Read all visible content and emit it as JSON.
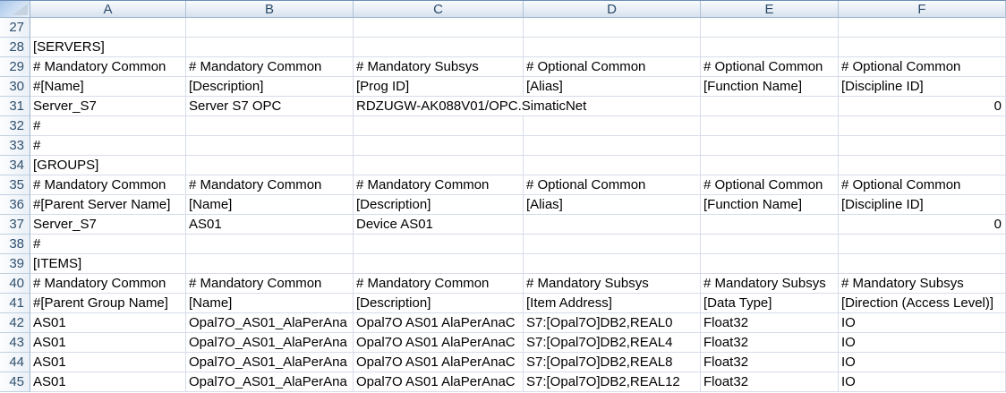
{
  "sheet": {
    "column_headers": [
      "A",
      "B",
      "C",
      "D",
      "E",
      "F"
    ],
    "rows": [
      {
        "num": "27",
        "cells": [
          "",
          "",
          "",
          "",
          "",
          ""
        ]
      },
      {
        "num": "28",
        "cells": [
          "[SERVERS]",
          "",
          "",
          "",
          "",
          ""
        ]
      },
      {
        "num": "29",
        "cells": [
          "# Mandatory Common",
          "# Mandatory Common",
          "# Mandatory Subsys",
          "# Optional Common",
          "# Optional Common",
          "# Optional Common"
        ]
      },
      {
        "num": "30",
        "cells": [
          "#[Name]",
          "[Description]",
          "[Prog ID]",
          "[Alias]",
          "[Function Name]",
          "[Discipline ID]"
        ]
      },
      {
        "num": "31",
        "cells": [
          "Server_S7",
          "Server S7 OPC",
          "RDZUGW-AK088V01/OPC.SimaticNet",
          "",
          "",
          "0"
        ]
      },
      {
        "num": "32",
        "cells": [
          "#",
          "",
          "",
          "",
          "",
          ""
        ]
      },
      {
        "num": "33",
        "cells": [
          "#",
          "",
          "",
          "",
          "",
          ""
        ]
      },
      {
        "num": "34",
        "cells": [
          "[GROUPS]",
          "",
          "",
          "",
          "",
          ""
        ]
      },
      {
        "num": "35",
        "cells": [
          "# Mandatory Common",
          "# Mandatory Common",
          "# Mandatory Common",
          "# Optional Common",
          "# Optional Common",
          "# Optional Common"
        ]
      },
      {
        "num": "36",
        "cells": [
          "#[Parent Server Name]",
          "[Name]",
          "[Description]",
          "[Alias]",
          "[Function Name]",
          "[Discipline ID]"
        ]
      },
      {
        "num": "37",
        "cells": [
          "Server_S7",
          "AS01",
          "Device AS01",
          "",
          "",
          "0"
        ]
      },
      {
        "num": "38",
        "cells": [
          "#",
          "",
          "",
          "",
          "",
          ""
        ]
      },
      {
        "num": "39",
        "cells": [
          "[ITEMS]",
          "",
          "",
          "",
          "",
          ""
        ]
      },
      {
        "num": "40",
        "cells": [
          "# Mandatory Common",
          "# Mandatory Common",
          "# Mandatory Common",
          "# Mandatory Subsys",
          "# Mandatory Subsys",
          "# Mandatory Subsys"
        ]
      },
      {
        "num": "41",
        "cells": [
          "#[Parent Group Name]",
          "[Name]",
          "[Description]",
          "[Item Address]",
          "[Data Type]",
          "[Direction (Access Level)]"
        ]
      },
      {
        "num": "42",
        "cells": [
          "AS01",
          "Opal7O_AS01_AlaPerAna",
          "Opal7O AS01 AlaPerAnaC",
          "S7:[Opal7O]DB2,REAL0",
          "Float32",
          "IO"
        ]
      },
      {
        "num": "43",
        "cells": [
          "AS01",
          "Opal7O_AS01_AlaPerAna",
          "Opal7O AS01 AlaPerAnaC",
          "S7:[Opal7O]DB2,REAL4",
          "Float32",
          "IO"
        ]
      },
      {
        "num": "44",
        "cells": [
          "AS01",
          "Opal7O_AS01_AlaPerAna",
          "Opal7O AS01 AlaPerAnaC",
          "S7:[Opal7O]DB2,REAL8",
          "Float32",
          "IO"
        ]
      },
      {
        "num": "45",
        "cells": [
          "AS01",
          "Opal7O_AS01_AlaPerAna",
          "Opal7O AS01 AlaPerAnaC",
          "S7:[Opal7O]DB2,REAL12",
          "Float32",
          "IO"
        ]
      }
    ],
    "colors": {
      "gridline": "#d6dce8",
      "header_border": "#9eb6ce",
      "header_bg_top": "#f8fbfd",
      "header_bg_bottom": "#d6e1ee",
      "header_text": "#2a4a68"
    }
  }
}
